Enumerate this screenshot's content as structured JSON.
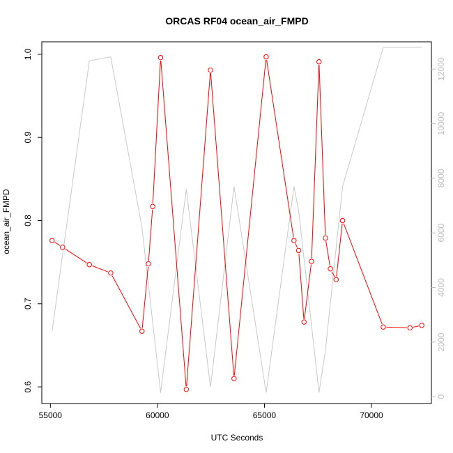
{
  "chart_data": {
    "type": "line",
    "title": "ORCAS RF04 ocean_air_FMPD",
    "xlabel": "UTC Seconds",
    "ylabel": "ocean_air_FMPD",
    "y2label": "",
    "xlim": [
      54600,
      72800
    ],
    "ylim": [
      0.58,
      1.015
    ],
    "y2lim": [
      -250,
      13000
    ],
    "x_ticks": [
      55000,
      60000,
      65000,
      70000
    ],
    "y_ticks": [
      0.6,
      0.7,
      0.8,
      0.9,
      1.0
    ],
    "y_tick_labels": [
      "0.6",
      "0.7",
      "0.8",
      "0.9",
      "1.0"
    ],
    "y2_ticks": [
      0,
      2000,
      4000,
      6000,
      8000,
      10000,
      12000
    ],
    "grid": false,
    "legend": "none",
    "series": [
      {
        "axis": "left",
        "color": "#ff0000",
        "markers": "open-circle",
        "x": [
          55080,
          55570,
          56820,
          57820,
          59280,
          59580,
          59780,
          60150,
          61350,
          62480,
          63580,
          65080,
          66380,
          66600,
          66850,
          67200,
          67550,
          67850,
          68080,
          68350,
          68650,
          70550,
          71800,
          72350
        ],
        "y": [
          0.776,
          0.768,
          0.747,
          0.737,
          0.667,
          0.748,
          0.817,
          0.996,
          0.597,
          0.981,
          0.61,
          0.997,
          0.776,
          0.764,
          0.678,
          0.751,
          0.991,
          0.779,
          0.742,
          0.729,
          0.8,
          0.672,
          0.671,
          0.674
        ]
      },
      {
        "axis": "right",
        "color": "#c8c8c8",
        "markers": "none",
        "x": [
          55080,
          56820,
          57820,
          59280,
          60150,
          61350,
          62480,
          63580,
          65080,
          66380,
          66600,
          67550,
          67850,
          68650,
          70550,
          72350
        ],
        "y": [
          2400,
          12300,
          12450,
          6200,
          150,
          7600,
          350,
          7700,
          150,
          7700,
          6800,
          150,
          1700,
          7700,
          12800,
          12800
        ]
      }
    ]
  }
}
